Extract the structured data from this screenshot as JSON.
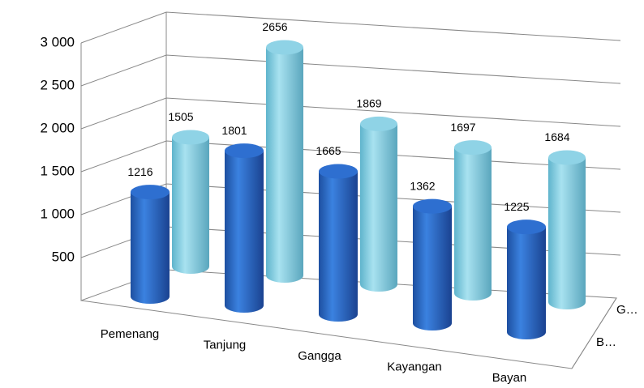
{
  "chart_data": {
    "type": "bar3d",
    "categories": [
      "Pemenang",
      "Tanjung",
      "Gangga",
      "Kayangan",
      "Bayan"
    ],
    "series": [
      {
        "name": "B…",
        "color": "#2e6fd0",
        "values": [
          1216,
          1801,
          1665,
          1362,
          1225
        ]
      },
      {
        "name": "G…",
        "color": "#8fd3e6",
        "values": [
          1505,
          2656,
          1869,
          1697,
          1684
        ]
      }
    ],
    "ylim": [
      0,
      3000
    ],
    "yticks": [
      {
        "value": 500,
        "label": "500"
      },
      {
        "value": 1000,
        "label": "1 000"
      },
      {
        "value": 1500,
        "label": "1 500"
      },
      {
        "value": 2000,
        "label": "2 000"
      },
      {
        "value": 2500,
        "label": "2 500"
      },
      {
        "value": 3000,
        "label": "3 000"
      }
    ],
    "grid": true
  }
}
